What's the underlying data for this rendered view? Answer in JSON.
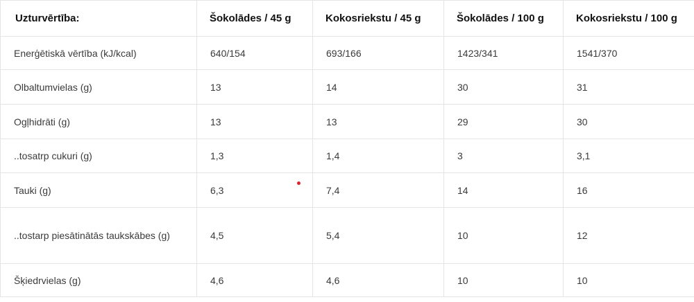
{
  "table": {
    "headers": [
      "Uzturvērtība:",
      "Šokolādes / 45 g",
      "Kokosriekstu / 45 g",
      "Šokolādes / 100 g",
      "Kokosriekstu / 100 g"
    ],
    "rows": [
      [
        "Enerģētiskā vērtība (kJ/kcal)",
        "640/154",
        "693/166",
        "1423/341",
        "1541/370"
      ],
      [
        "Olbaltumvielas (g)",
        "13",
        "14",
        "30",
        "31"
      ],
      [
        "Ogļhidrāti (g)",
        "13",
        "13",
        "29",
        "30"
      ],
      [
        "..tosatrp cukuri (g)",
        "1,3",
        "1,4",
        "3",
        "3,1"
      ],
      [
        "Tauki (g)",
        "6,3",
        "7,4",
        "14",
        "16"
      ],
      [
        "..tostarp piesātinātās taukskābes (g)",
        "4,5",
        "5,4",
        "10",
        "12"
      ],
      [
        "Šķiedrvielas (g)",
        "4,6",
        "4,6",
        "10",
        "10"
      ]
    ]
  },
  "colors": {
    "border": "#e4e4e4",
    "text": "#3a3a3a",
    "header_text": "#111111",
    "marker": "#e0202a"
  }
}
